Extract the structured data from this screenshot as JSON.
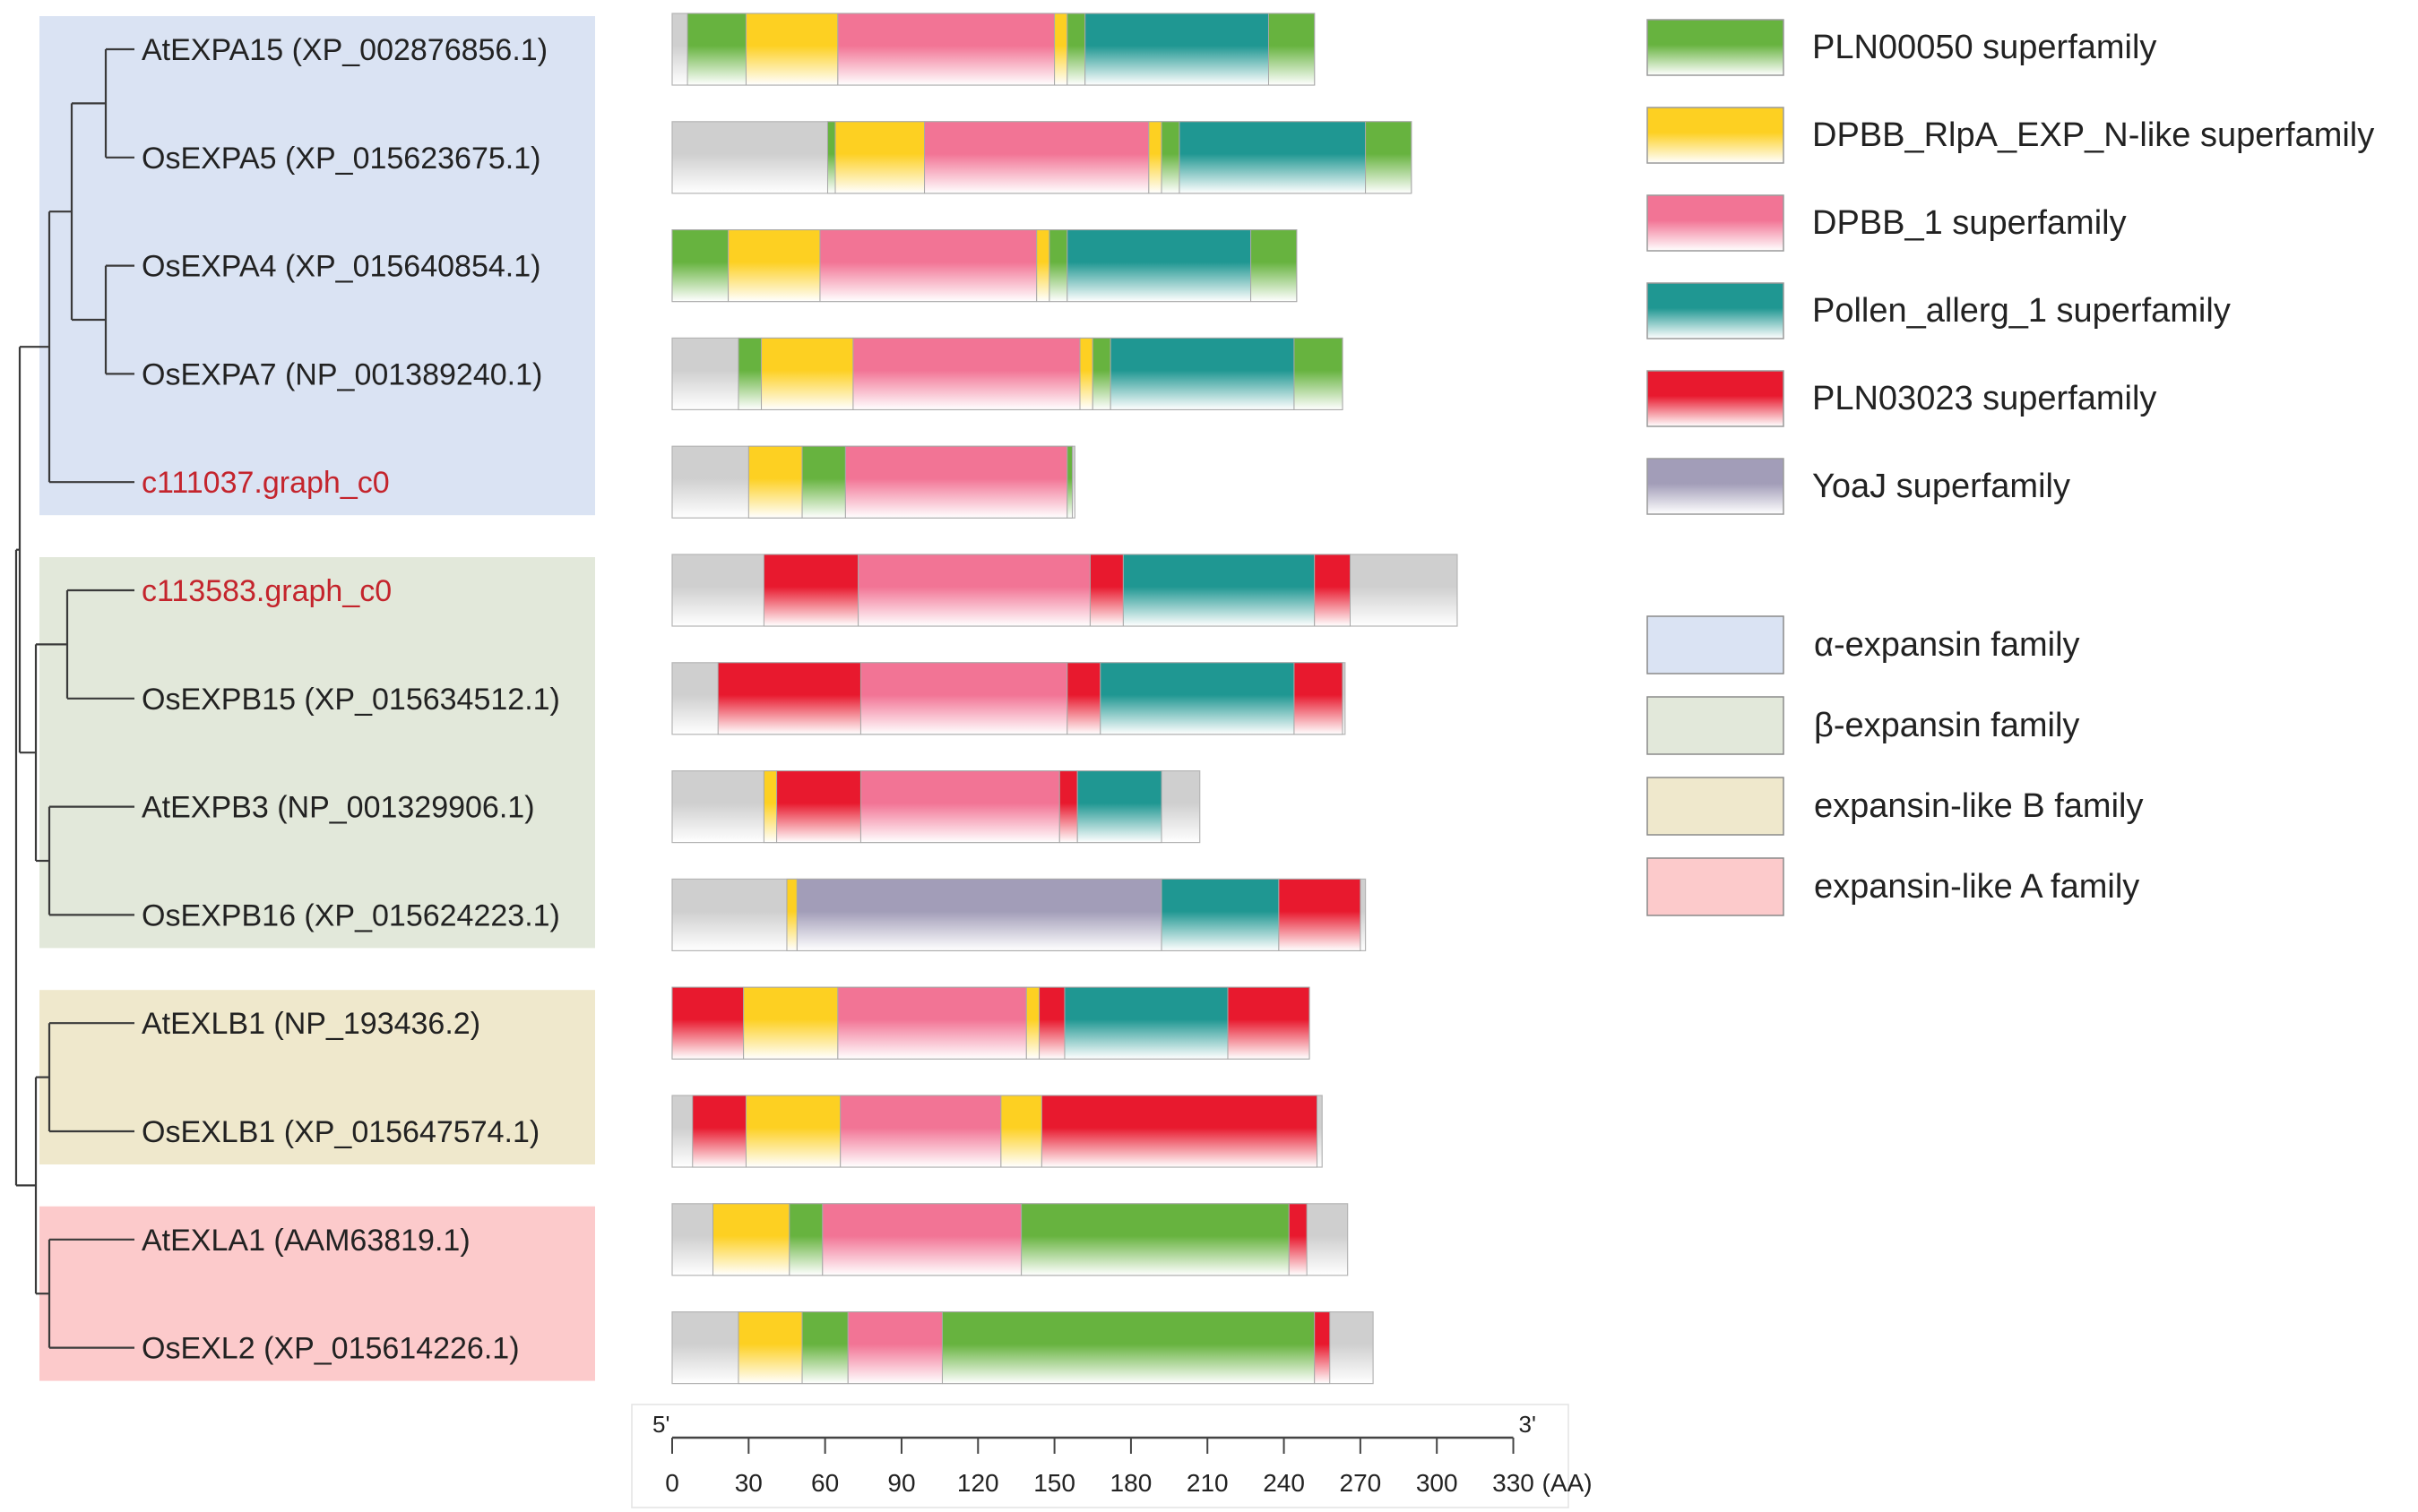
{
  "families": [
    {
      "key": "alpha",
      "label": "α-expansin family",
      "color": "#dae3f3"
    },
    {
      "key": "beta",
      "label": "β-expansin family",
      "color": "#e2e8da"
    },
    {
      "key": "exlb",
      "label": "expansin-like B family",
      "color": "#efe8cc"
    },
    {
      "key": "exla",
      "label": "expansin-like A family",
      "color": "#fccacb"
    }
  ],
  "domain_types": [
    {
      "key": "PLN00050",
      "label": "PLN00050 superfamily",
      "color": "#67b33f"
    },
    {
      "key": "DPBB_RlpA",
      "label": "DPBB_RlpA_EXP_N-like superfamily",
      "color": "#fdd022"
    },
    {
      "key": "DPBB_1",
      "label": "DPBB_1 superfamily",
      "color": "#f27495"
    },
    {
      "key": "Pollen_allerg",
      "label": "Pollen_allerg_1 superfamily",
      "color": "#1f9792"
    },
    {
      "key": "PLN03023",
      "label": "PLN03023 superfamily",
      "color": "#e8192e"
    },
    {
      "key": "YoaJ",
      "label": "YoaJ superfamily",
      "color": "#a29db8"
    }
  ],
  "base_color": "#cfcfcf",
  "highlight_color": "#c4242c",
  "text_color": "#222222",
  "proteins": [
    {
      "name": "AtEXPA15 (XP_002876856.1)",
      "family": "alpha",
      "highlight": false,
      "length": 252,
      "domains": [
        [
          "PLN00050",
          6,
          29
        ],
        [
          "DPBB_RlpA",
          29,
          65
        ],
        [
          "DPBB_1",
          65,
          150
        ],
        [
          "DPBB_RlpA",
          150,
          155
        ],
        [
          "PLN00050",
          155,
          162
        ],
        [
          "Pollen_allerg",
          162,
          234
        ],
        [
          "PLN00050",
          234,
          252
        ]
      ]
    },
    {
      "name": "OsEXPA5 (XP_015623675.1)",
      "family": "alpha",
      "highlight": false,
      "length": 290,
      "domains": [
        [
          "PLN00050",
          61,
          64
        ],
        [
          "DPBB_RlpA",
          64,
          99
        ],
        [
          "DPBB_1",
          99,
          187
        ],
        [
          "DPBB_RlpA",
          187,
          192
        ],
        [
          "PLN00050",
          192,
          199
        ],
        [
          "Pollen_allerg",
          199,
          272
        ],
        [
          "PLN00050",
          272,
          290
        ]
      ]
    },
    {
      "name": "OsEXPA4 (XP_015640854.1)",
      "family": "alpha",
      "highlight": false,
      "length": 245,
      "domains": [
        [
          "PLN00050",
          0,
          22
        ],
        [
          "DPBB_RlpA",
          22,
          58
        ],
        [
          "DPBB_1",
          58,
          143
        ],
        [
          "DPBB_RlpA",
          143,
          148
        ],
        [
          "PLN00050",
          148,
          155
        ],
        [
          "Pollen_allerg",
          155,
          227
        ],
        [
          "PLN00050",
          227,
          245
        ]
      ]
    },
    {
      "name": "OsEXPA7 (NP_001389240.1)",
      "family": "alpha",
      "highlight": false,
      "length": 263,
      "domains": [
        [
          "PLN00050",
          26,
          35
        ],
        [
          "DPBB_RlpA",
          35,
          71
        ],
        [
          "DPBB_1",
          71,
          160
        ],
        [
          "DPBB_RlpA",
          160,
          165
        ],
        [
          "PLN00050",
          165,
          172
        ],
        [
          "Pollen_allerg",
          172,
          244
        ],
        [
          "PLN00050",
          244,
          263
        ]
      ]
    },
    {
      "name": "c111037.graph_c0",
      "family": "alpha",
      "highlight": true,
      "length": 158,
      "domains": [
        [
          "DPBB_RlpA",
          30,
          51
        ],
        [
          "PLN00050",
          51,
          68
        ],
        [
          "DPBB_1",
          68,
          155
        ],
        [
          "PLN00050",
          155,
          157
        ]
      ]
    },
    {
      "name": "c113583.graph_c0",
      "family": "beta",
      "highlight": true,
      "length": 308,
      "domains": [
        [
          "PLN03023",
          36,
          73
        ],
        [
          "DPBB_1",
          73,
          164
        ],
        [
          "PLN03023",
          164,
          177
        ],
        [
          "Pollen_allerg",
          177,
          252
        ],
        [
          "PLN03023",
          252,
          266
        ]
      ]
    },
    {
      "name": "OsEXPB15 (XP_015634512.1)",
      "family": "beta",
      "highlight": false,
      "length": 264,
      "domains": [
        [
          "PLN03023",
          18,
          74
        ],
        [
          "DPBB_1",
          74,
          155
        ],
        [
          "PLN03023",
          155,
          168
        ],
        [
          "Pollen_allerg",
          168,
          244
        ],
        [
          "PLN03023",
          244,
          263
        ]
      ]
    },
    {
      "name": "AtEXPB3 (NP_001329906.1)",
      "family": "beta",
      "highlight": false,
      "length": 207,
      "domains": [
        [
          "DPBB_RlpA",
          36,
          41
        ],
        [
          "PLN03023",
          41,
          74
        ],
        [
          "DPBB_1",
          74,
          152
        ],
        [
          "PLN03023",
          152,
          159
        ],
        [
          "Pollen_allerg",
          159,
          192
        ]
      ]
    },
    {
      "name": "OsEXPB16 (XP_015624223.1)",
      "family": "beta",
      "highlight": false,
      "length": 272,
      "domains": [
        [
          "DPBB_RlpA",
          45,
          49
        ],
        [
          "YoaJ",
          49,
          192
        ],
        [
          "Pollen_allerg",
          192,
          238
        ],
        [
          "PLN03023",
          238,
          270
        ]
      ]
    },
    {
      "name": "AtEXLB1 (NP_193436.2)",
      "family": "exlb",
      "highlight": false,
      "length": 250,
      "domains": [
        [
          "PLN03023",
          0,
          28
        ],
        [
          "DPBB_RlpA",
          28,
          65
        ],
        [
          "DPBB_1",
          65,
          139
        ],
        [
          "DPBB_RlpA",
          139,
          144
        ],
        [
          "PLN03023",
          144,
          154
        ],
        [
          "Pollen_allerg",
          154,
          218
        ],
        [
          "PLN03023",
          218,
          250
        ]
      ]
    },
    {
      "name": "OsEXLB1 (XP_015647574.1)",
      "family": "exlb",
      "highlight": false,
      "length": 255,
      "domains": [
        [
          "PLN03023",
          8,
          29
        ],
        [
          "DPBB_RlpA",
          29,
          66
        ],
        [
          "DPBB_1",
          66,
          129
        ],
        [
          "DPBB_RlpA",
          129,
          145
        ],
        [
          "PLN03023",
          145,
          253
        ]
      ]
    },
    {
      "name": "AtEXLA1 (AAM63819.1)",
      "family": "exla",
      "highlight": false,
      "length": 265,
      "domains": [
        [
          "DPBB_RlpA",
          16,
          46
        ],
        [
          "PLN00050",
          46,
          59
        ],
        [
          "DPBB_1",
          59,
          137
        ],
        [
          "PLN00050",
          137,
          242
        ],
        [
          "PLN03023",
          242,
          249
        ]
      ]
    },
    {
      "name": "OsEXL2 (XP_015614226.1)",
      "family": "exla",
      "highlight": false,
      "length": 275,
      "domains": [
        [
          "DPBB_RlpA",
          26,
          51
        ],
        [
          "PLN00050",
          51,
          69
        ],
        [
          "DPBB_1",
          69,
          106
        ],
        [
          "PLN00050",
          106,
          252
        ],
        [
          "PLN03023",
          252,
          258
        ]
      ]
    }
  ],
  "axis": {
    "start_label": "5'",
    "end_label": "3'",
    "unit_label": "(AA)",
    "ticks": [
      0,
      30,
      60,
      90,
      120,
      150,
      180,
      210,
      240,
      270,
      300,
      330
    ],
    "max": 330
  }
}
